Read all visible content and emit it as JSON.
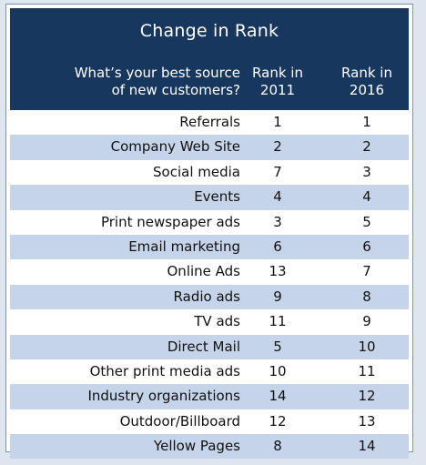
{
  "chart_data": {
    "type": "table",
    "title": "Change in Rank",
    "columns": [
      "What’s your best source of new customers?",
      "Rank in 2011",
      "Rank in 2016"
    ],
    "header_lines": {
      "source": [
        "What’s your best source",
        "of new customers?"
      ],
      "rank2011": [
        "Rank in",
        "2011"
      ],
      "rank2016": [
        "Rank in",
        "2016"
      ]
    },
    "rows": [
      {
        "source": "Referrals",
        "rank2011": "1",
        "rank2016": "1"
      },
      {
        "source": "Company Web Site",
        "rank2011": "2",
        "rank2016": "2"
      },
      {
        "source": "Social media",
        "rank2011": "7",
        "rank2016": "3"
      },
      {
        "source": "Events",
        "rank2011": "4",
        "rank2016": "4"
      },
      {
        "source": "Print newspaper ads",
        "rank2011": "3",
        "rank2016": "5"
      },
      {
        "source": "Email marketing",
        "rank2011": "6",
        "rank2016": "6"
      },
      {
        "source": "Online Ads",
        "rank2011": "13",
        "rank2016": "7"
      },
      {
        "source": "Radio ads",
        "rank2011": "9",
        "rank2016": "8"
      },
      {
        "source": "TV ads",
        "rank2011": "11",
        "rank2016": "9"
      },
      {
        "source": "Direct Mail",
        "rank2011": "5",
        "rank2016": "10"
      },
      {
        "source": "Other print media ads",
        "rank2011": "10",
        "rank2016": "11"
      },
      {
        "source": "Industry organizations",
        "rank2011": "14",
        "rank2016": "12"
      },
      {
        "source": "Outdoor/Billboard",
        "rank2011": "12",
        "rank2016": "13"
      },
      {
        "source": "Yellow Pages",
        "rank2011": "8",
        "rank2016": "14"
      }
    ]
  },
  "colors": {
    "header_bg": "#17375e",
    "header_text": "#ffffff",
    "alt_row": "#c6d4ea",
    "border": "#7c95b2"
  }
}
